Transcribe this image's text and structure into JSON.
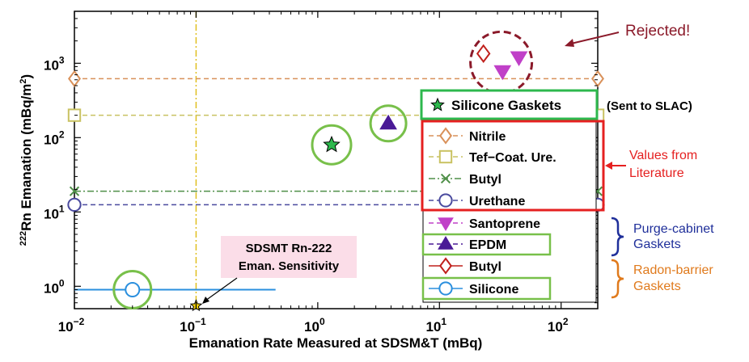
{
  "chart_data": {
    "type": "scatter",
    "xlabel": "Emanation Rate Measured at SDSM&T (mBq)",
    "ylabel": "222Rn Emanation (mBq/m2)",
    "ylabel_parts": {
      "pre": "222",
      "mid": "Rn Emanation (mBq/m",
      "sup": "2",
      "post": ")"
    },
    "xscale": "log",
    "yscale": "log",
    "xlim": [
      0.01,
      200
    ],
    "ylim": [
      0.5,
      5000
    ],
    "x_ticks": [
      {
        "v": 0.01,
        "base": "10",
        "exp": "−2"
      },
      {
        "v": 0.1,
        "base": "10",
        "exp": "−1"
      },
      {
        "v": 1,
        "base": "10",
        "exp": "0"
      },
      {
        "v": 10,
        "base": "10",
        "exp": "1"
      },
      {
        "v": 100,
        "base": "10",
        "exp": "2"
      }
    ],
    "y_ticks": [
      {
        "v": 1,
        "base": "10",
        "exp": "0"
      },
      {
        "v": 10,
        "base": "10",
        "exp": "1"
      },
      {
        "v": 100,
        "base": "10",
        "exp": "2"
      },
      {
        "v": 1000,
        "base": "10",
        "exp": "3"
      }
    ],
    "grid": false,
    "series": [
      {
        "name": "Silicone Gaskets",
        "marker": "star",
        "color": "#2db84d",
        "points": [
          {
            "x": 1.3,
            "y": 80
          }
        ]
      },
      {
        "name": "Nitrile",
        "marker": "diamond-open",
        "color": "#d9915a",
        "line": "dashed",
        "y_level": 620
      },
      {
        "name": "Tef−Coat. Ure.",
        "marker": "square-open",
        "color": "#c9c262",
        "line": "dashed",
        "y_level": 200
      },
      {
        "name": "Butyl",
        "marker": "x",
        "color": "#4f8f48",
        "line": "dashdot",
        "y_level": 19
      },
      {
        "name": "Urethane",
        "marker": "circle-open",
        "color": "#4a4a9e",
        "line": "dashed",
        "y_level": 12.5
      },
      {
        "name": "Santoprene",
        "marker": "triangle-down",
        "color": "#c040c8",
        "line": "dashed",
        "points": [
          {
            "x": 33,
            "y": 780
          },
          {
            "x": 45,
            "y": 1200
          }
        ]
      },
      {
        "name": "EPDM",
        "marker": "triangle-up",
        "color": "#4a1a96",
        "line": "dashed",
        "points": [
          {
            "x": 3.8,
            "y": 155
          }
        ]
      },
      {
        "name": "Butyl",
        "marker": "diamond-open",
        "color": "#c0201c",
        "line": "solid",
        "points": [
          {
            "x": 23,
            "y": 1350
          }
        ]
      },
      {
        "name": "Silicone",
        "marker": "circle-open",
        "color": "#2a8fde",
        "line": "solid",
        "points": [
          {
            "x": 0.03,
            "y": 0.9
          }
        ],
        "x_range": [
          0.01,
          0.45
        ]
      }
    ],
    "sensitivity": {
      "x": 0.1,
      "y": 0.52,
      "label_lines": [
        "SDSMT Rn-222",
        "Eman. Sensitivity"
      ]
    },
    "annotations": {
      "rejected": "Rejected!",
      "sent_to_slac": "(Sent to SLAC)",
      "values_from": "Values  from",
      "literature": "Literature",
      "purge_1": "Purge-cabinet",
      "purge_2": "Gaskets",
      "barrier_1": "Radon-barrier",
      "barrier_2": "Gaskets"
    },
    "colors": {
      "highlight_green": "#78c04a",
      "highlight_red": "#e52020",
      "rejected_circle": "#8b1a2a",
      "purge_brace": "#1f2f9a",
      "barrier_brace": "#e07a1c",
      "sensitivity_line": "#e0c020",
      "sensitivity_box": "#fbdde8"
    }
  }
}
